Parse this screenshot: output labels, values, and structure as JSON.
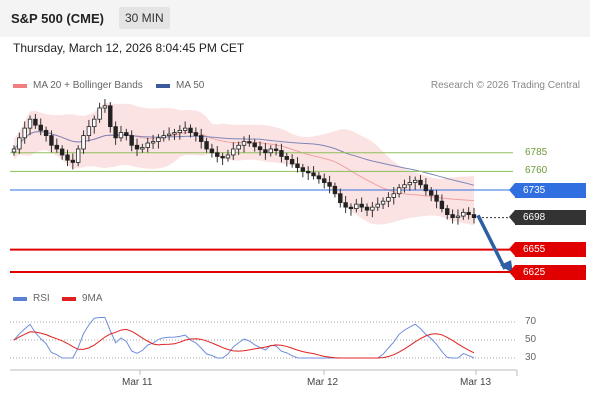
{
  "header": {
    "title": "S&P 500 (CME)",
    "interval": "30 MIN"
  },
  "datetime": "Thursday, March 12, 2026 8:04:45 PM CET",
  "credit": "Research © 2026 Trading Central",
  "legend": {
    "main": [
      {
        "label": "MA 20 + Bollinger Bands",
        "color": "#f08080"
      },
      {
        "label": "MA 50",
        "color": "#3a5a9c"
      }
    ],
    "rsi": [
      {
        "label": "RSI",
        "color": "#5b7fd6"
      },
      {
        "label": "9MA",
        "color": "#e02020"
      }
    ]
  },
  "chart_data": {
    "type": "candlestick",
    "x_labels": [
      "Mar 11",
      "Mar 12",
      "Mar 13"
    ],
    "levels": [
      {
        "value": 6785,
        "label": "6785",
        "kind": "resistance",
        "color": "#8fbf5a"
      },
      {
        "value": 6760,
        "label": "6760",
        "kind": "resistance",
        "color": "#8fbf5a"
      },
      {
        "value": 6735,
        "label": "6735",
        "kind": "pivot",
        "color": "#2f6fe0"
      },
      {
        "value": 6698,
        "label": "6698",
        "kind": "last",
        "color": "#333333"
      },
      {
        "value": 6655,
        "label": "6655",
        "kind": "support",
        "color": "#e00000"
      },
      {
        "value": 6625,
        "label": "6625",
        "kind": "support",
        "color": "#e00000"
      }
    ],
    "rsi_ticks": [
      70,
      50,
      30
    ],
    "closes": [
      6790,
      6805,
      6818,
      6830,
      6822,
      6815,
      6808,
      6795,
      6790,
      6782,
      6775,
      6772,
      6790,
      6808,
      6820,
      6830,
      6845,
      6848,
      6820,
      6805,
      6812,
      6808,
      6795,
      6790,
      6792,
      6798,
      6800,
      6805,
      6808,
      6810,
      6812,
      6815,
      6818,
      6812,
      6808,
      6800,
      6790,
      6785,
      6780,
      6778,
      6782,
      6790,
      6795,
      6800,
      6798,
      6793,
      6789,
      6785,
      6790,
      6788,
      6780,
      6776,
      6770,
      6765,
      6760,
      6758,
      6754,
      6750,
      6745,
      6740,
      6730,
      6718,
      6712,
      6710,
      6716,
      6712,
      6708,
      6712,
      6716,
      6720,
      6725,
      6730,
      6738,
      6742,
      6745,
      6748,
      6742,
      6734,
      6728,
      6720,
      6710,
      6702,
      6698,
      6700,
      6705,
      6702,
      6698
    ]
  }
}
